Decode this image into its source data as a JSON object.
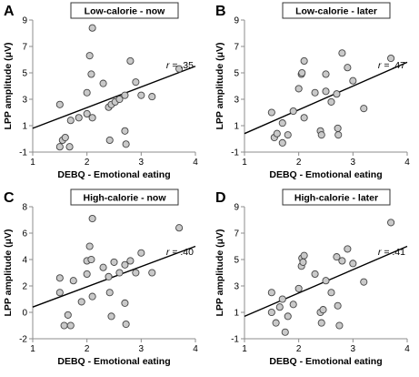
{
  "chart_data": [
    {
      "type": "scatter",
      "letter": "A",
      "title": "Low-calorie - now",
      "xlabel": "DEBQ - Emotional eating",
      "ylabel": "LPP amplitude (μV)",
      "xlim": [
        1,
        4
      ],
      "ylim": [
        -1,
        9
      ],
      "xticks": [
        1,
        2,
        3,
        4
      ],
      "yticks": [
        -1,
        1,
        3,
        5,
        7,
        9
      ],
      "r_label_prefix": "r",
      "r_label_value": " = .35",
      "regression": {
        "x": [
          1,
          4
        ],
        "y": [
          0.8,
          5.5
        ]
      },
      "points": [
        {
          "x": 1.5,
          "y": 2.6
        },
        {
          "x": 1.5,
          "y": -0.6
        },
        {
          "x": 1.55,
          "y": -0.1
        },
        {
          "x": 1.6,
          "y": 0.1
        },
        {
          "x": 1.68,
          "y": -0.6
        },
        {
          "x": 1.7,
          "y": 1.4
        },
        {
          "x": 1.85,
          "y": 1.6
        },
        {
          "x": 2.0,
          "y": 1.9
        },
        {
          "x": 2.0,
          "y": 3.5
        },
        {
          "x": 2.05,
          "y": 6.3
        },
        {
          "x": 2.08,
          "y": 4.9
        },
        {
          "x": 2.1,
          "y": 8.4
        },
        {
          "x": 2.1,
          "y": 1.6
        },
        {
          "x": 2.3,
          "y": 4.2
        },
        {
          "x": 2.4,
          "y": 2.4
        },
        {
          "x": 2.45,
          "y": 2.6
        },
        {
          "x": 2.42,
          "y": -0.1
        },
        {
          "x": 2.52,
          "y": 2.8
        },
        {
          "x": 2.6,
          "y": 3.0
        },
        {
          "x": 2.7,
          "y": 3.3
        },
        {
          "x": 2.7,
          "y": 0.6
        },
        {
          "x": 2.72,
          "y": -0.4
        },
        {
          "x": 2.8,
          "y": 5.9
        },
        {
          "x": 2.9,
          "y": 4.3
        },
        {
          "x": 3.0,
          "y": 3.3
        },
        {
          "x": 3.2,
          "y": 3.2
        },
        {
          "x": 3.7,
          "y": 5.3
        }
      ]
    },
    {
      "type": "scatter",
      "letter": "B",
      "title": "Low-calorie - later",
      "xlabel": "DEBQ - Emotional eating",
      "ylabel": "LPP amplitude (μV)",
      "xlim": [
        1,
        4
      ],
      "ylim": [
        -1,
        9
      ],
      "xticks": [
        1,
        2,
        3,
        4
      ],
      "yticks": [
        -1,
        1,
        3,
        5,
        7,
        9
      ],
      "r_label_prefix": "r",
      "r_label_value": " = .47",
      "regression": {
        "x": [
          1,
          4
        ],
        "y": [
          0.4,
          5.8
        ]
      },
      "points": [
        {
          "x": 1.5,
          "y": 2.0
        },
        {
          "x": 1.55,
          "y": 0.1
        },
        {
          "x": 1.6,
          "y": 0.4
        },
        {
          "x": 1.7,
          "y": -0.3
        },
        {
          "x": 1.7,
          "y": 1.2
        },
        {
          "x": 1.8,
          "y": 0.3
        },
        {
          "x": 1.9,
          "y": 2.1
        },
        {
          "x": 2.0,
          "y": 3.8
        },
        {
          "x": 2.05,
          "y": 4.9
        },
        {
          "x": 2.06,
          "y": 5.0
        },
        {
          "x": 2.1,
          "y": 5.9
        },
        {
          "x": 2.1,
          "y": 1.6
        },
        {
          "x": 2.3,
          "y": 3.5
        },
        {
          "x": 2.4,
          "y": 0.6
        },
        {
          "x": 2.42,
          "y": 0.3
        },
        {
          "x": 2.5,
          "y": 3.6
        },
        {
          "x": 2.5,
          "y": 4.9
        },
        {
          "x": 2.6,
          "y": 2.8
        },
        {
          "x": 2.7,
          "y": 3.4
        },
        {
          "x": 2.72,
          "y": 0.8
        },
        {
          "x": 2.73,
          "y": 0.3
        },
        {
          "x": 2.8,
          "y": 6.5
        },
        {
          "x": 2.9,
          "y": 5.4
        },
        {
          "x": 3.0,
          "y": 4.4
        },
        {
          "x": 3.2,
          "y": 2.3
        },
        {
          "x": 3.7,
          "y": 6.1
        }
      ]
    },
    {
      "type": "scatter",
      "letter": "C",
      "title": "High-calorie - now",
      "xlabel": "DEBQ - Emotional eating",
      "ylabel": "LPP amplitude (μV)",
      "xlim": [
        1,
        4
      ],
      "ylim": [
        -2,
        8
      ],
      "xticks": [
        1,
        2,
        3,
        4
      ],
      "yticks": [
        -2,
        0,
        2,
        4,
        6,
        8
      ],
      "r_label_prefix": "r",
      "r_label_value": " = .40",
      "regression": {
        "x": [
          1,
          4
        ],
        "y": [
          0.4,
          5.0
        ]
      },
      "points": [
        {
          "x": 1.5,
          "y": 2.6
        },
        {
          "x": 1.5,
          "y": 1.5
        },
        {
          "x": 1.58,
          "y": -1.0
        },
        {
          "x": 1.65,
          "y": -0.2
        },
        {
          "x": 1.7,
          "y": -1.0
        },
        {
          "x": 1.75,
          "y": 2.4
        },
        {
          "x": 1.9,
          "y": 0.8
        },
        {
          "x": 2.0,
          "y": 3.9
        },
        {
          "x": 2.0,
          "y": 2.9
        },
        {
          "x": 2.05,
          "y": 5.0
        },
        {
          "x": 2.08,
          "y": 4.0
        },
        {
          "x": 2.1,
          "y": 7.1
        },
        {
          "x": 2.1,
          "y": 1.2
        },
        {
          "x": 2.3,
          "y": 3.4
        },
        {
          "x": 2.4,
          "y": 2.7
        },
        {
          "x": 2.42,
          "y": 1.5
        },
        {
          "x": 2.45,
          "y": -0.3
        },
        {
          "x": 2.5,
          "y": 3.8
        },
        {
          "x": 2.6,
          "y": 3.0
        },
        {
          "x": 2.7,
          "y": 3.6
        },
        {
          "x": 2.7,
          "y": 0.7
        },
        {
          "x": 2.72,
          "y": -0.9
        },
        {
          "x": 2.8,
          "y": 3.9
        },
        {
          "x": 2.9,
          "y": 3.0
        },
        {
          "x": 3.0,
          "y": 4.5
        },
        {
          "x": 3.2,
          "y": 3.0
        },
        {
          "x": 3.7,
          "y": 6.4
        }
      ]
    },
    {
      "type": "scatter",
      "letter": "D",
      "title": "High-calorie - later",
      "xlabel": "DEBQ - Emotional eating",
      "ylabel": "LPP amplitude (μV)",
      "xlim": [
        1,
        4
      ],
      "ylim": [
        -1,
        9
      ],
      "xticks": [
        1,
        2,
        3,
        4
      ],
      "yticks": [
        -1,
        1,
        3,
        5,
        7,
        9
      ],
      "r_label_prefix": "r",
      "r_label_value": " = .41",
      "regression": {
        "x": [
          1,
          4
        ],
        "y": [
          0.7,
          6.0
        ]
      },
      "points": [
        {
          "x": 1.5,
          "y": 2.5
        },
        {
          "x": 1.5,
          "y": 1.0
        },
        {
          "x": 1.58,
          "y": 0.2
        },
        {
          "x": 1.65,
          "y": 1.4
        },
        {
          "x": 1.7,
          "y": 2.0
        },
        {
          "x": 1.75,
          "y": -0.5
        },
        {
          "x": 1.8,
          "y": 0.7
        },
        {
          "x": 1.9,
          "y": 1.6
        },
        {
          "x": 2.0,
          "y": 2.8
        },
        {
          "x": 2.05,
          "y": 4.5
        },
        {
          "x": 2.06,
          "y": 5.1
        },
        {
          "x": 2.08,
          "y": 4.8
        },
        {
          "x": 2.1,
          "y": 5.3
        },
        {
          "x": 2.3,
          "y": 3.9
        },
        {
          "x": 2.4,
          "y": 1.0
        },
        {
          "x": 2.42,
          "y": 0.2
        },
        {
          "x": 2.45,
          "y": 1.2
        },
        {
          "x": 2.5,
          "y": 3.4
        },
        {
          "x": 2.6,
          "y": 2.5
        },
        {
          "x": 2.7,
          "y": 5.2
        },
        {
          "x": 2.72,
          "y": 1.5
        },
        {
          "x": 2.75,
          "y": 0.0
        },
        {
          "x": 2.8,
          "y": 4.9
        },
        {
          "x": 2.9,
          "y": 5.8
        },
        {
          "x": 3.0,
          "y": 4.7
        },
        {
          "x": 3.2,
          "y": 3.3
        },
        {
          "x": 3.7,
          "y": 7.8
        }
      ]
    }
  ],
  "colors": {
    "point_fill": "#c9c9c9",
    "point_stroke": "#444444",
    "regression_line": "#000000",
    "axis": "#8c8c8c",
    "text": "#000000"
  }
}
